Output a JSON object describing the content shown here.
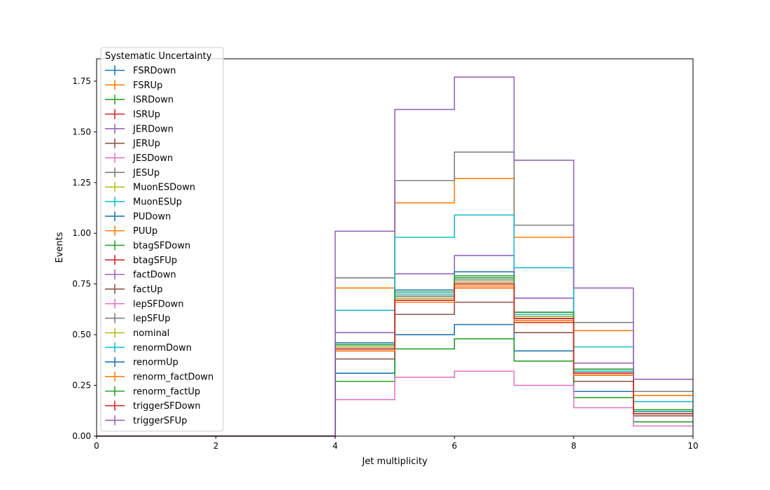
{
  "chart_data": {
    "type": "step",
    "xlabel": "Jet multiplicity",
    "ylabel": "Events",
    "xlim": [
      0,
      10
    ],
    "ylim": [
      0,
      1.86
    ],
    "xticks": [
      0,
      2,
      4,
      6,
      8,
      10
    ],
    "yticks": [
      0.0,
      0.25,
      0.5,
      0.75,
      1.0,
      1.25,
      1.5,
      1.75
    ],
    "ytick_labels": [
      "0.00",
      "0.25",
      "0.50",
      "0.75",
      "1.00",
      "1.25",
      "1.50",
      "1.75"
    ],
    "xtick_labels": [
      "0",
      "2",
      "4",
      "6",
      "8",
      "10"
    ],
    "bin_edges": [
      0,
      1,
      2,
      3,
      4,
      5,
      6,
      7,
      8,
      9,
      10
    ],
    "legend": {
      "title": "Systematic Uncertainty",
      "placement": "upper-left"
    },
    "series": [
      {
        "name": "FSRDown",
        "color": "#1f77b4",
        "values": [
          0,
          0,
          0,
          0,
          0.31,
          0.5,
          0.55,
          0.42,
          0.22,
          0.07
        ]
      },
      {
        "name": "FSRUp",
        "color": "#ff7f0e",
        "values": [
          0,
          0,
          0,
          0,
          0.73,
          1.15,
          1.27,
          0.98,
          0.52,
          0.2
        ]
      },
      {
        "name": "ISRDown",
        "color": "#2ca02c",
        "values": [
          0,
          0,
          0,
          0,
          0.27,
          0.43,
          0.48,
          0.37,
          0.19,
          0.07
        ]
      },
      {
        "name": "ISRUp",
        "color": "#d62728",
        "values": [
          0,
          0,
          0,
          0,
          0.42,
          0.66,
          0.73,
          0.56,
          0.3,
          0.11
        ]
      },
      {
        "name": "JERDown",
        "color": "#9467bd",
        "values": [
          0,
          0,
          0,
          0,
          0.51,
          0.8,
          0.89,
          0.68,
          0.36,
          0.13
        ]
      },
      {
        "name": "JERUp",
        "color": "#8c564b",
        "values": [
          0,
          0,
          0,
          0,
          0.38,
          0.6,
          0.66,
          0.51,
          0.27,
          0.1
        ]
      },
      {
        "name": "JESDown",
        "color": "#e377c2",
        "values": [
          0,
          0,
          0,
          0,
          0.18,
          0.29,
          0.32,
          0.25,
          0.14,
          0.05
        ]
      },
      {
        "name": "JESUp",
        "color": "#7f7f7f",
        "values": [
          0,
          0,
          0,
          0,
          0.78,
          1.26,
          1.4,
          1.04,
          0.56,
          0.22
        ]
      },
      {
        "name": "MuonESDown",
        "color": "#bcbd22",
        "values": [
          0,
          0,
          0,
          0,
          0.44,
          0.69,
          0.76,
          0.59,
          0.32,
          0.12
        ]
      },
      {
        "name": "MuonESUp",
        "color": "#17becf",
        "values": [
          0,
          0,
          0,
          0,
          0.62,
          0.98,
          1.09,
          0.83,
          0.44,
          0.17
        ]
      },
      {
        "name": "PUDown",
        "color": "#1f77b4",
        "values": [
          0,
          0,
          0,
          0,
          0.46,
          0.72,
          0.81,
          0.61,
          0.33,
          0.12
        ]
      },
      {
        "name": "PUUp",
        "color": "#ff7f0e",
        "values": [
          0,
          0,
          0,
          0,
          0.42,
          0.66,
          0.74,
          0.57,
          0.3,
          0.11
        ]
      },
      {
        "name": "btagSFDown",
        "color": "#2ca02c",
        "values": [
          0,
          0,
          0,
          0,
          0.45,
          0.71,
          0.79,
          0.61,
          0.33,
          0.13
        ]
      },
      {
        "name": "btagSFUp",
        "color": "#d62728",
        "values": [
          0,
          0,
          0,
          0,
          0.43,
          0.67,
          0.75,
          0.58,
          0.31,
          0.12
        ]
      },
      {
        "name": "factDown",
        "color": "#9467bd",
        "values": [
          0,
          0,
          0,
          0,
          0.44,
          0.69,
          0.77,
          0.59,
          0.32,
          0.12
        ]
      },
      {
        "name": "factUp",
        "color": "#8c564b",
        "values": [
          0,
          0,
          0,
          0,
          0.43,
          0.68,
          0.75,
          0.58,
          0.31,
          0.12
        ]
      },
      {
        "name": "lepSFDown",
        "color": "#e377c2",
        "values": [
          0,
          0,
          0,
          0,
          0.43,
          0.67,
          0.76,
          0.58,
          0.31,
          0.11
        ]
      },
      {
        "name": "lepSFUp",
        "color": "#7f7f7f",
        "values": [
          0,
          0,
          0,
          0,
          0.44,
          0.69,
          0.77,
          0.59,
          0.32,
          0.12
        ]
      },
      {
        "name": "nominal",
        "color": "#bcbd22",
        "values": [
          0,
          0,
          0,
          0,
          0.44,
          0.68,
          0.76,
          0.59,
          0.31,
          0.12
        ]
      },
      {
        "name": "renormDown",
        "color": "#17becf",
        "values": [
          0,
          0,
          0,
          0,
          0.45,
          0.7,
          0.78,
          0.6,
          0.32,
          0.12
        ]
      },
      {
        "name": "renormUp",
        "color": "#1f77b4",
        "values": [
          0,
          0,
          0,
          0,
          0.43,
          0.67,
          0.75,
          0.58,
          0.31,
          0.11
        ]
      },
      {
        "name": "renorm_factDown",
        "color": "#ff7f0e",
        "values": [
          0,
          0,
          0,
          0,
          0.42,
          0.66,
          0.73,
          0.57,
          0.3,
          0.11
        ]
      },
      {
        "name": "renorm_factUp",
        "color": "#2ca02c",
        "values": [
          0,
          0,
          0,
          0,
          0.45,
          0.71,
          0.78,
          0.61,
          0.33,
          0.13
        ]
      },
      {
        "name": "triggerSFDown",
        "color": "#d62728",
        "values": [
          0,
          0,
          0,
          0,
          0.43,
          0.67,
          0.75,
          0.58,
          0.31,
          0.11
        ]
      },
      {
        "name": "triggerSFUp",
        "color": "#9467bd",
        "values": [
          0,
          0,
          0,
          0,
          1.01,
          1.61,
          1.77,
          1.36,
          0.73,
          0.28
        ]
      }
    ]
  }
}
